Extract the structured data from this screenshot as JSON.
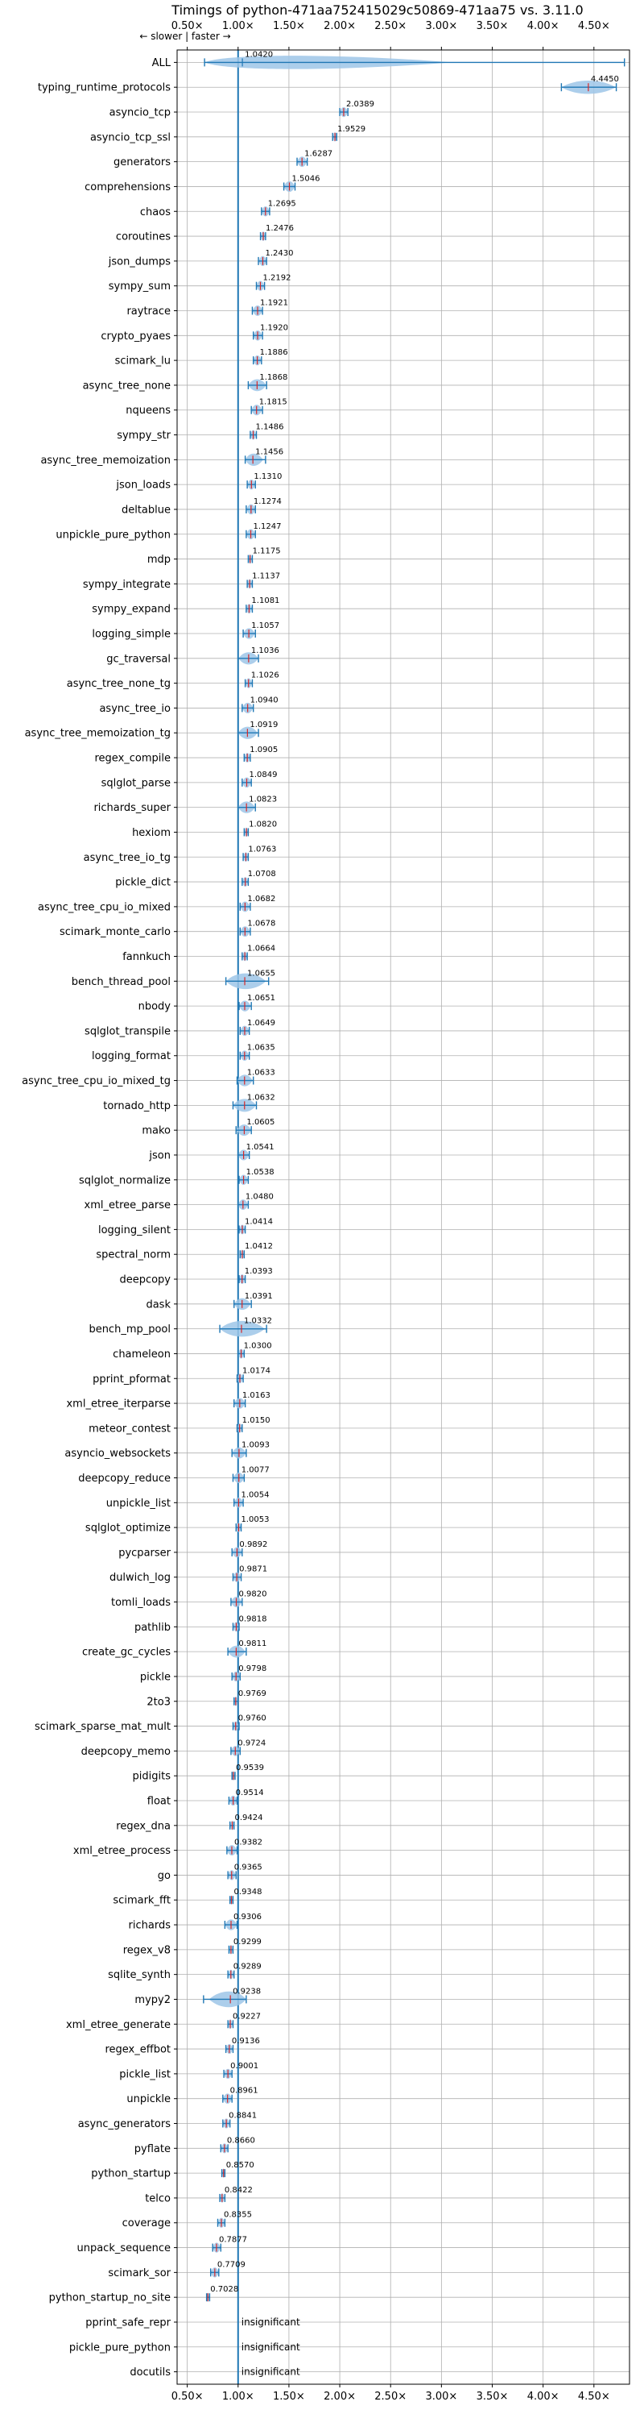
{
  "chart_data": {
    "type": "violin",
    "title": "Timings of python-471aa752415029c50869-471aa75 vs. 3.11.0",
    "direction_label": "← slower | faster →",
    "xlim": [
      0.4,
      4.85
    ],
    "xticks": [
      0.5,
      1.0,
      1.5,
      2.0,
      2.5,
      3.0,
      3.5,
      4.0,
      4.5
    ],
    "xtick_labels": [
      "0.50×",
      "1.00×",
      "1.50×",
      "2.00×",
      "2.50×",
      "3.00×",
      "3.50×",
      "4.00×",
      "4.50×"
    ],
    "reference_line": 1.0,
    "grid": true,
    "colors": {
      "reference": "#1f77b4",
      "violin": "#9ec5e8",
      "marker": "#1f77b4",
      "median": "#d62728",
      "grid": "#b0b0b0"
    },
    "benchmarks": [
      {
        "name": "ALL",
        "value": 1.042,
        "label": "1.0420",
        "lo": 0.67,
        "hi": 4.8
      },
      {
        "name": "typing_runtime_protocols",
        "value": 4.445,
        "label": "4.4450",
        "lo": 4.18,
        "hi": 4.72
      },
      {
        "name": "asyncio_tcp",
        "value": 2.0389,
        "label": "2.0389",
        "lo": 2.0,
        "hi": 2.08
      },
      {
        "name": "asyncio_tcp_ssl",
        "value": 1.9529,
        "label": "1.9529",
        "lo": 1.93,
        "hi": 1.97
      },
      {
        "name": "generators",
        "value": 1.6287,
        "label": "1.6287",
        "lo": 1.58,
        "hi": 1.68
      },
      {
        "name": "comprehensions",
        "value": 1.5046,
        "label": "1.5046",
        "lo": 1.45,
        "hi": 1.56
      },
      {
        "name": "chaos",
        "value": 1.2695,
        "label": "1.2695",
        "lo": 1.23,
        "hi": 1.31
      },
      {
        "name": "coroutines",
        "value": 1.2476,
        "label": "1.2476",
        "lo": 1.22,
        "hi": 1.27
      },
      {
        "name": "json_dumps",
        "value": 1.243,
        "label": "1.2430",
        "lo": 1.2,
        "hi": 1.28
      },
      {
        "name": "sympy_sum",
        "value": 1.2192,
        "label": "1.2192",
        "lo": 1.18,
        "hi": 1.26
      },
      {
        "name": "raytrace",
        "value": 1.1921,
        "label": "1.1921",
        "lo": 1.14,
        "hi": 1.24
      },
      {
        "name": "crypto_pyaes",
        "value": 1.192,
        "label": "1.1920",
        "lo": 1.15,
        "hi": 1.24
      },
      {
        "name": "scimark_lu",
        "value": 1.1886,
        "label": "1.1886",
        "lo": 1.15,
        "hi": 1.23
      },
      {
        "name": "async_tree_none",
        "value": 1.1868,
        "label": "1.1868",
        "lo": 1.1,
        "hi": 1.28
      },
      {
        "name": "nqueens",
        "value": 1.1815,
        "label": "1.1815",
        "lo": 1.13,
        "hi": 1.24
      },
      {
        "name": "sympy_str",
        "value": 1.1486,
        "label": "1.1486",
        "lo": 1.12,
        "hi": 1.18
      },
      {
        "name": "async_tree_memoization",
        "value": 1.1456,
        "label": "1.1456",
        "lo": 1.07,
        "hi": 1.27
      },
      {
        "name": "json_loads",
        "value": 1.131,
        "label": "1.1310",
        "lo": 1.09,
        "hi": 1.17
      },
      {
        "name": "deltablue",
        "value": 1.1274,
        "label": "1.1274",
        "lo": 1.08,
        "hi": 1.17
      },
      {
        "name": "unpickle_pure_python",
        "value": 1.1247,
        "label": "1.1247",
        "lo": 1.08,
        "hi": 1.17
      },
      {
        "name": "mdp",
        "value": 1.1175,
        "label": "1.1175",
        "lo": 1.1,
        "hi": 1.14
      },
      {
        "name": "sympy_integrate",
        "value": 1.1137,
        "label": "1.1137",
        "lo": 1.09,
        "hi": 1.14
      },
      {
        "name": "sympy_expand",
        "value": 1.1081,
        "label": "1.1081",
        "lo": 1.08,
        "hi": 1.14
      },
      {
        "name": "logging_simple",
        "value": 1.1057,
        "label": "1.1057",
        "lo": 1.05,
        "hi": 1.17
      },
      {
        "name": "gc_traversal",
        "value": 1.1036,
        "label": "1.1036",
        "lo": 1.0,
        "hi": 1.2
      },
      {
        "name": "async_tree_none_tg",
        "value": 1.1026,
        "label": "1.1026",
        "lo": 1.07,
        "hi": 1.14
      },
      {
        "name": "async_tree_io",
        "value": 1.094,
        "label": "1.0940",
        "lo": 1.04,
        "hi": 1.15
      },
      {
        "name": "async_tree_memoization_tg",
        "value": 1.0919,
        "label": "1.0919",
        "lo": 1.0,
        "hi": 1.2
      },
      {
        "name": "regex_compile",
        "value": 1.0905,
        "label": "1.0905",
        "lo": 1.06,
        "hi": 1.12
      },
      {
        "name": "sqlglot_parse",
        "value": 1.0849,
        "label": "1.0849",
        "lo": 1.04,
        "hi": 1.13
      },
      {
        "name": "richards_super",
        "value": 1.0823,
        "label": "1.0823",
        "lo": 1.0,
        "hi": 1.17
      },
      {
        "name": "hexiom",
        "value": 1.082,
        "label": "1.0820",
        "lo": 1.06,
        "hi": 1.1
      },
      {
        "name": "async_tree_io_tg",
        "value": 1.0763,
        "label": "1.0763",
        "lo": 1.05,
        "hi": 1.1
      },
      {
        "name": "pickle_dict",
        "value": 1.0708,
        "label": "1.0708",
        "lo": 1.04,
        "hi": 1.1
      },
      {
        "name": "async_tree_cpu_io_mixed",
        "value": 1.0682,
        "label": "1.0682",
        "lo": 1.02,
        "hi": 1.12
      },
      {
        "name": "scimark_monte_carlo",
        "value": 1.0678,
        "label": "1.0678",
        "lo": 1.02,
        "hi": 1.12
      },
      {
        "name": "fannkuch",
        "value": 1.0664,
        "label": "1.0664",
        "lo": 1.04,
        "hi": 1.09
      },
      {
        "name": "bench_thread_pool",
        "value": 1.0655,
        "label": "1.0655",
        "lo": 0.88,
        "hi": 1.3
      },
      {
        "name": "nbody",
        "value": 1.0651,
        "label": "1.0651",
        "lo": 1.01,
        "hi": 1.13
      },
      {
        "name": "sqlglot_transpile",
        "value": 1.0649,
        "label": "1.0649",
        "lo": 1.02,
        "hi": 1.11
      },
      {
        "name": "logging_format",
        "value": 1.0635,
        "label": "1.0635",
        "lo": 1.02,
        "hi": 1.11
      },
      {
        "name": "async_tree_cpu_io_mixed_tg",
        "value": 1.0633,
        "label": "1.0633",
        "lo": 0.99,
        "hi": 1.15
      },
      {
        "name": "tornado_http",
        "value": 1.0632,
        "label": "1.0632",
        "lo": 0.95,
        "hi": 1.18
      },
      {
        "name": "mako",
        "value": 1.0605,
        "label": "1.0605",
        "lo": 0.98,
        "hi": 1.13
      },
      {
        "name": "json",
        "value": 1.0541,
        "label": "1.0541",
        "lo": 1.0,
        "hi": 1.11
      },
      {
        "name": "sqlglot_normalize",
        "value": 1.0538,
        "label": "1.0538",
        "lo": 1.01,
        "hi": 1.1
      },
      {
        "name": "xml_etree_parse",
        "value": 1.048,
        "label": "1.0480",
        "lo": 1.0,
        "hi": 1.1
      },
      {
        "name": "logging_silent",
        "value": 1.0414,
        "label": "1.0414",
        "lo": 1.01,
        "hi": 1.07
      },
      {
        "name": "spectral_norm",
        "value": 1.0412,
        "label": "1.0412",
        "lo": 1.02,
        "hi": 1.06
      },
      {
        "name": "deepcopy",
        "value": 1.0393,
        "label": "1.0393",
        "lo": 1.01,
        "hi": 1.07
      },
      {
        "name": "dask",
        "value": 1.0391,
        "label": "1.0391",
        "lo": 0.96,
        "hi": 1.13
      },
      {
        "name": "bench_mp_pool",
        "value": 1.0332,
        "label": "1.0332",
        "lo": 0.82,
        "hi": 1.28
      },
      {
        "name": "chameleon",
        "value": 1.03,
        "label": "1.0300",
        "lo": 1.0,
        "hi": 1.06
      },
      {
        "name": "pprint_pformat",
        "value": 1.0174,
        "label": "1.0174",
        "lo": 0.99,
        "hi": 1.05
      },
      {
        "name": "xml_etree_iterparse",
        "value": 1.0163,
        "label": "1.0163",
        "lo": 0.96,
        "hi": 1.07
      },
      {
        "name": "meteor_contest",
        "value": 1.015,
        "label": "1.0150",
        "lo": 0.99,
        "hi": 1.04
      },
      {
        "name": "asyncio_websockets",
        "value": 1.0093,
        "label": "1.0093",
        "lo": 0.94,
        "hi": 1.08
      },
      {
        "name": "deepcopy_reduce",
        "value": 1.0077,
        "label": "1.0077",
        "lo": 0.95,
        "hi": 1.06
      },
      {
        "name": "unpickle_list",
        "value": 1.0054,
        "label": "1.0054",
        "lo": 0.96,
        "hi": 1.05
      },
      {
        "name": "sqlglot_optimize",
        "value": 1.0053,
        "label": "1.0053",
        "lo": 0.98,
        "hi": 1.03
      },
      {
        "name": "pycparser",
        "value": 0.9892,
        "label": "0.9892",
        "lo": 0.94,
        "hi": 1.04
      },
      {
        "name": "dulwich_log",
        "value": 0.9871,
        "label": "0.9871",
        "lo": 0.95,
        "hi": 1.03
      },
      {
        "name": "tomli_loads",
        "value": 0.982,
        "label": "0.9820",
        "lo": 0.93,
        "hi": 1.04
      },
      {
        "name": "pathlib",
        "value": 0.9818,
        "label": "0.9818",
        "lo": 0.95,
        "hi": 1.01
      },
      {
        "name": "create_gc_cycles",
        "value": 0.9811,
        "label": "0.9811",
        "lo": 0.9,
        "hi": 1.08
      },
      {
        "name": "pickle",
        "value": 0.9798,
        "label": "0.9798",
        "lo": 0.94,
        "hi": 1.02
      },
      {
        "name": "2to3",
        "value": 0.9769,
        "label": "0.9769",
        "lo": 0.96,
        "hi": 1.0
      },
      {
        "name": "scimark_sparse_mat_mult",
        "value": 0.976,
        "label": "0.9760",
        "lo": 0.95,
        "hi": 1.01
      },
      {
        "name": "deepcopy_memo",
        "value": 0.9724,
        "label": "0.9724",
        "lo": 0.93,
        "hi": 1.02
      },
      {
        "name": "pidigits",
        "value": 0.9539,
        "label": "0.9539",
        "lo": 0.94,
        "hi": 0.97
      },
      {
        "name": "float",
        "value": 0.9514,
        "label": "0.9514",
        "lo": 0.91,
        "hi": 0.99
      },
      {
        "name": "regex_dna",
        "value": 0.9424,
        "label": "0.9424",
        "lo": 0.92,
        "hi": 0.96
      },
      {
        "name": "xml_etree_process",
        "value": 0.9382,
        "label": "0.9382",
        "lo": 0.89,
        "hi": 0.99
      },
      {
        "name": "go",
        "value": 0.9365,
        "label": "0.9365",
        "lo": 0.9,
        "hi": 0.98
      },
      {
        "name": "scimark_fft",
        "value": 0.9348,
        "label": "0.9348",
        "lo": 0.92,
        "hi": 0.95
      },
      {
        "name": "richards",
        "value": 0.9306,
        "label": "0.9306",
        "lo": 0.87,
        "hi": 0.99
      },
      {
        "name": "regex_v8",
        "value": 0.9299,
        "label": "0.9299",
        "lo": 0.91,
        "hi": 0.95
      },
      {
        "name": "sqlite_synth",
        "value": 0.9289,
        "label": "0.9289",
        "lo": 0.9,
        "hi": 0.96
      },
      {
        "name": "mypy2",
        "value": 0.9238,
        "label": "0.9238",
        "lo": 0.66,
        "hi": 1.08
      },
      {
        "name": "xml_etree_generate",
        "value": 0.9227,
        "label": "0.9227",
        "lo": 0.9,
        "hi": 0.95
      },
      {
        "name": "regex_effbot",
        "value": 0.9136,
        "label": "0.9136",
        "lo": 0.88,
        "hi": 0.95
      },
      {
        "name": "pickle_list",
        "value": 0.9001,
        "label": "0.9001",
        "lo": 0.86,
        "hi": 0.94
      },
      {
        "name": "unpickle",
        "value": 0.8961,
        "label": "0.8961",
        "lo": 0.85,
        "hi": 0.94
      },
      {
        "name": "async_generators",
        "value": 0.8841,
        "label": "0.8841",
        "lo": 0.85,
        "hi": 0.92
      },
      {
        "name": "pyflate",
        "value": 0.866,
        "label": "0.8660",
        "lo": 0.83,
        "hi": 0.9
      },
      {
        "name": "python_startup",
        "value": 0.857,
        "label": "0.8570",
        "lo": 0.84,
        "hi": 0.87
      },
      {
        "name": "telco",
        "value": 0.8422,
        "label": "0.8422",
        "lo": 0.82,
        "hi": 0.87
      },
      {
        "name": "coverage",
        "value": 0.8355,
        "label": "0.8355",
        "lo": 0.8,
        "hi": 0.87
      },
      {
        "name": "unpack_sequence",
        "value": 0.7877,
        "label": "0.7877",
        "lo": 0.75,
        "hi": 0.83
      },
      {
        "name": "scimark_sor",
        "value": 0.7709,
        "label": "0.7709",
        "lo": 0.73,
        "hi": 0.81
      },
      {
        "name": "python_startup_no_site",
        "value": 0.7028,
        "label": "0.7028",
        "lo": 0.69,
        "hi": 0.72
      },
      {
        "name": "pprint_safe_repr",
        "value": null,
        "label": "insignificant"
      },
      {
        "name": "pickle_pure_python",
        "value": null,
        "label": "insignificant"
      },
      {
        "name": "docutils",
        "value": null,
        "label": "insignificant"
      }
    ]
  }
}
